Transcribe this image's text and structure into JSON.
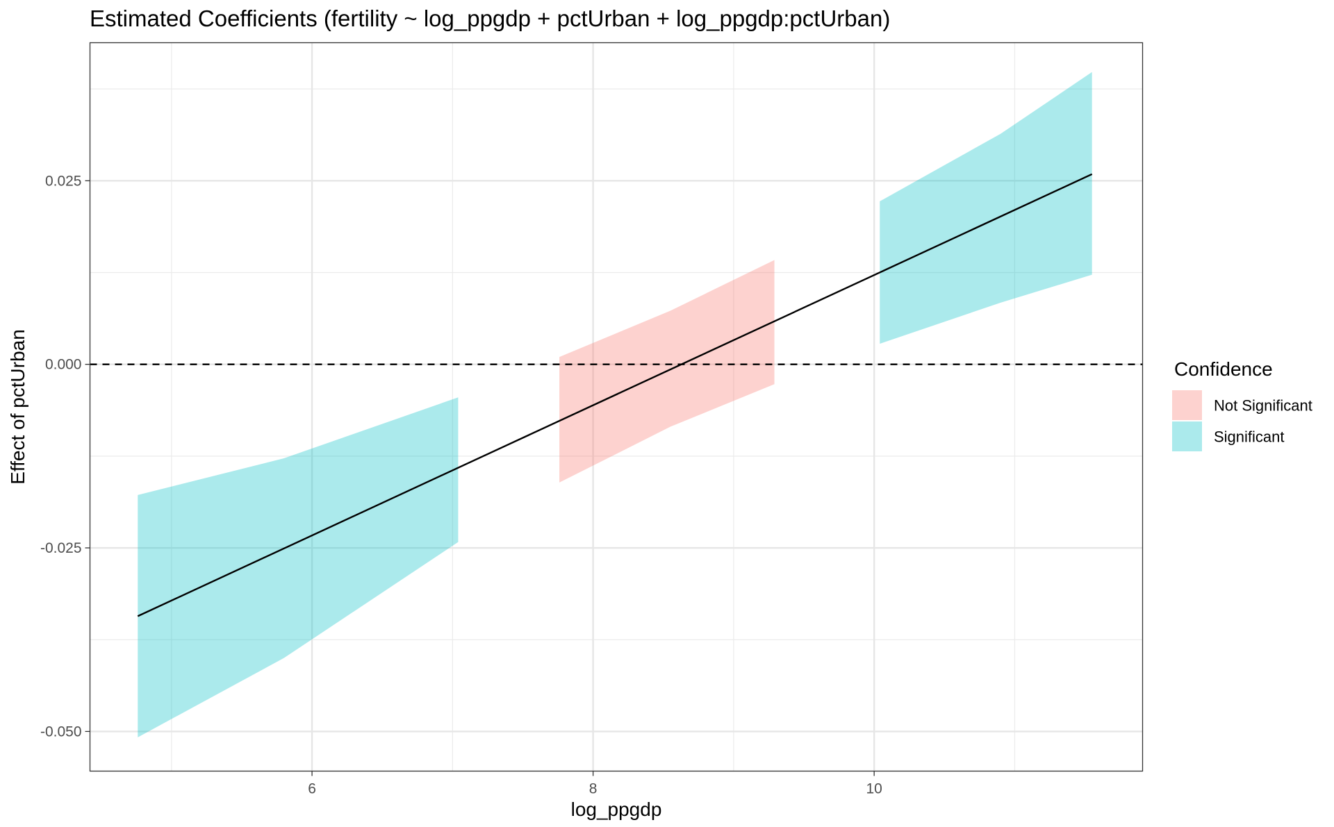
{
  "chart_data": {
    "type": "area",
    "title": "Estimated Coefficients (fertility ~ log_ppgdp + pctUrban + log_ppgdp:pctUrban)",
    "xlabel": "log_ppgdp",
    "ylabel": "Effect of pctUrban",
    "xlim": [
      4.42,
      11.91
    ],
    "ylim": [
      -0.0554,
      0.0438
    ],
    "x_ticks": [
      6,
      8,
      10
    ],
    "x_tick_labels": [
      "6",
      "8",
      "10"
    ],
    "y_ticks": [
      -0.05,
      -0.025,
      0.0,
      0.025
    ],
    "y_tick_labels": [
      "-0.050",
      "-0.025",
      "0.000",
      "0.025"
    ],
    "grid": true,
    "reference_line": {
      "y": 0.0,
      "style": "dashed",
      "color": "#000000"
    },
    "estimate_line": {
      "color": "#000000",
      "x": [
        4.76,
        11.55
      ],
      "y": [
        -0.0343,
        0.0259
      ]
    },
    "bands": [
      {
        "group": "Significant",
        "x": [
          4.76,
          5.8,
          7.04
        ],
        "lower": [
          -0.0508,
          -0.04,
          -0.0242
        ],
        "upper": [
          -0.0178,
          -0.0128,
          -0.0045
        ]
      },
      {
        "group": "Not Significant",
        "x": [
          7.76,
          8.55,
          9.29
        ],
        "lower": [
          -0.0161,
          -0.0085,
          -0.0027
        ],
        "upper": [
          0.001,
          0.0073,
          0.0142
        ]
      },
      {
        "group": "Significant",
        "x": [
          10.04,
          10.9,
          11.55
        ],
        "lower": [
          0.0028,
          0.0084,
          0.0122
        ],
        "upper": [
          0.0222,
          0.0314,
          0.0398
        ]
      }
    ],
    "legend": {
      "title": "Confidence",
      "position": "right",
      "entries": [
        {
          "label": "Not Significant",
          "color": "#f8766d"
        },
        {
          "label": "Significant",
          "color": "#00bfc4"
        }
      ]
    },
    "colors": {
      "Not Significant": "#f8766d",
      "Significant": "#00bfc4"
    }
  }
}
